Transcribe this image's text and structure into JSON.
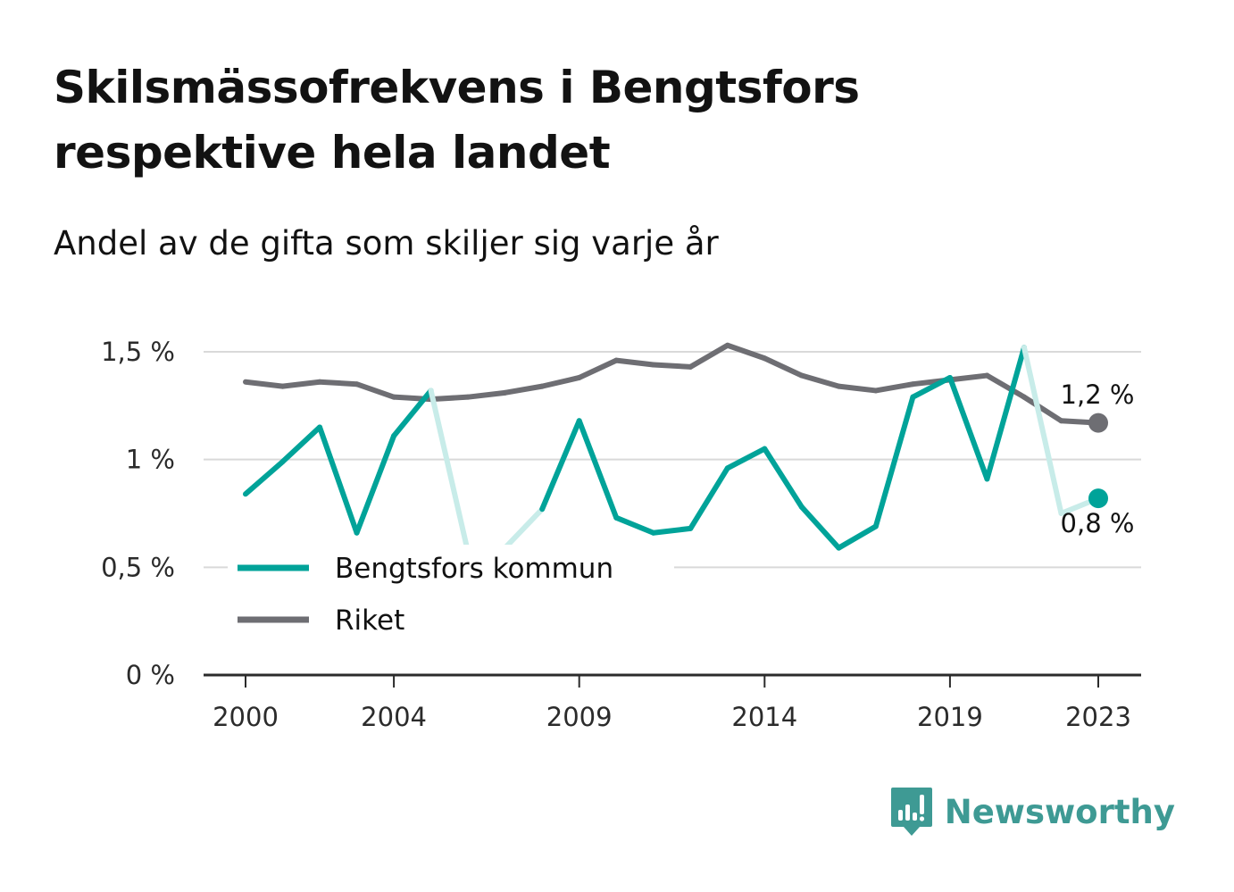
{
  "title": "Skilsmässofrekvens i Bengtsfors respektive hela landet",
  "subtitle": "Andel av de gifta som skiljer sig varje år",
  "brand": {
    "name": "Newsworthy",
    "icon": "newsworthy-logo-icon",
    "color": "#3e9a94"
  },
  "chart_data": {
    "type": "line",
    "x": [
      2000,
      2001,
      2002,
      2003,
      2004,
      2005,
      2006,
      2007,
      2008,
      2009,
      2010,
      2011,
      2012,
      2013,
      2014,
      2015,
      2016,
      2017,
      2018,
      2019,
      2020,
      2021,
      2022,
      2023
    ],
    "x_ticks": [
      "2000",
      "2004",
      "2009",
      "2014",
      "2019",
      "2023"
    ],
    "y_ticks": [
      "0 %",
      "0,5 %",
      "1 %",
      "1,5 %"
    ],
    "ylim": [
      0,
      1.5
    ],
    "grid": true,
    "legend_position": "bottom-left",
    "series": [
      {
        "name": "Bengtsfors kommun",
        "color": "#00a399",
        "values": [
          0.84,
          0.99,
          1.15,
          0.66,
          1.11,
          1.32,
          0.57,
          0.59,
          0.77,
          1.18,
          0.73,
          0.66,
          0.68,
          0.96,
          1.05,
          0.78,
          0.59,
          0.69,
          1.29,
          1.38,
          0.91,
          1.52,
          0.75,
          0.82
        ],
        "uncertain_x": [
          2006,
          2007,
          2022
        ],
        "end_label": "0,8 %"
      },
      {
        "name": "Riket",
        "color": "#6e6e73",
        "values": [
          1.36,
          1.34,
          1.36,
          1.35,
          1.29,
          1.28,
          1.29,
          1.31,
          1.34,
          1.38,
          1.46,
          1.44,
          1.43,
          1.53,
          1.47,
          1.39,
          1.34,
          1.32,
          1.35,
          1.37,
          1.39,
          1.29,
          1.18,
          1.17
        ],
        "end_label": "1,2 %"
      }
    ]
  }
}
